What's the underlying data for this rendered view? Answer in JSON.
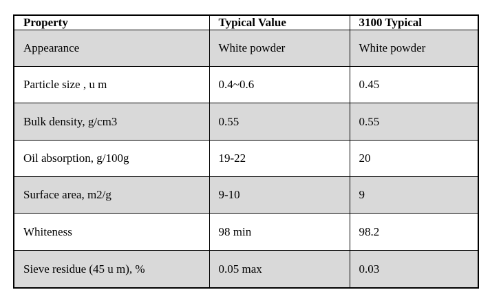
{
  "table": {
    "header": [
      "Property",
      "Typical Value",
      "3100 Typical"
    ],
    "rows": [
      [
        "Appearance",
        "White powder",
        "White powder"
      ],
      [
        "Particle size , u m",
        "0.4~0.6",
        "0.45"
      ],
      [
        "Bulk density, g/cm3",
        "0.55",
        "0.55"
      ],
      [
        "Oil absorption, g/100g",
        "19-22",
        "20"
      ],
      [
        "Surface area, m2/g",
        "9-10",
        "9"
      ],
      [
        "Whiteness",
        "98 min",
        "98.2"
      ],
      [
        "Sieve residue (45 u m), %",
        "0.05 max",
        "0.03"
      ]
    ],
    "colors": {
      "row_shade": "#d9d9d9",
      "border": "#000000",
      "text": "#000000"
    }
  }
}
